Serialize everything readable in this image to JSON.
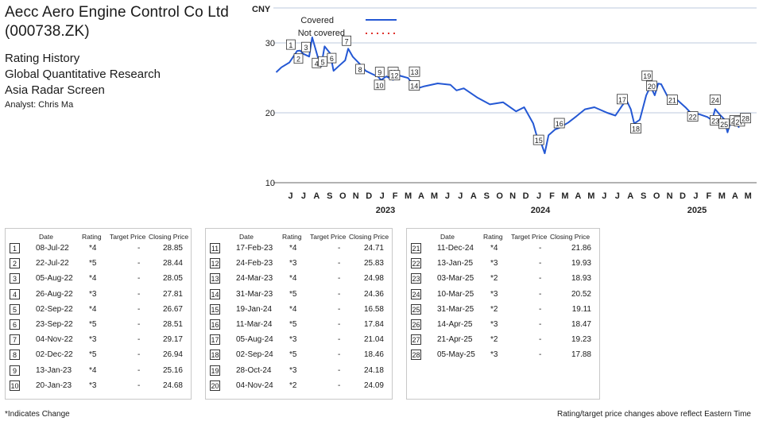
{
  "header": {
    "company_line1": "Aecc Aero Engine Control Co Ltd",
    "company_line2": "(000738.ZK)",
    "line1": "Rating History",
    "line2": "Global Quantitative Research",
    "line3": "Asia Radar Screen",
    "analyst": "Analyst: Chris Ma"
  },
  "legend": {
    "covered": "Covered",
    "not_covered": "Not covered",
    "covered_color": "#2458d4",
    "not_covered_color": "#e0322c"
  },
  "table_headers": {
    "date": "Date",
    "rating": "Rating",
    "target": "Target Price",
    "closing": "Closing Price"
  },
  "ratings": [
    {
      "n": "1",
      "date": "08-Jul-22",
      "rating": "*4",
      "target": "-",
      "close": "28.85"
    },
    {
      "n": "2",
      "date": "22-Jul-22",
      "rating": "*5",
      "target": "-",
      "close": "28.44"
    },
    {
      "n": "3",
      "date": "05-Aug-22",
      "rating": "*4",
      "target": "-",
      "close": "28.05"
    },
    {
      "n": "4",
      "date": "26-Aug-22",
      "rating": "*3",
      "target": "-",
      "close": "27.81"
    },
    {
      "n": "5",
      "date": "02-Sep-22",
      "rating": "*4",
      "target": "-",
      "close": "26.67"
    },
    {
      "n": "6",
      "date": "23-Sep-22",
      "rating": "*5",
      "target": "-",
      "close": "28.51"
    },
    {
      "n": "7",
      "date": "04-Nov-22",
      "rating": "*3",
      "target": "-",
      "close": "29.17"
    },
    {
      "n": "8",
      "date": "02-Dec-22",
      "rating": "*5",
      "target": "-",
      "close": "26.94"
    },
    {
      "n": "9",
      "date": "13-Jan-23",
      "rating": "*4",
      "target": "-",
      "close": "25.16"
    },
    {
      "n": "10",
      "date": "20-Jan-23",
      "rating": "*3",
      "target": "-",
      "close": "24.68"
    },
    {
      "n": "11",
      "date": "17-Feb-23",
      "rating": "*4",
      "target": "-",
      "close": "24.71"
    },
    {
      "n": "12",
      "date": "24-Feb-23",
      "rating": "*3",
      "target": "-",
      "close": "25.83"
    },
    {
      "n": "13",
      "date": "24-Mar-23",
      "rating": "*4",
      "target": "-",
      "close": "24.98"
    },
    {
      "n": "14",
      "date": "31-Mar-23",
      "rating": "*5",
      "target": "-",
      "close": "24.36"
    },
    {
      "n": "15",
      "date": "19-Jan-24",
      "rating": "*4",
      "target": "-",
      "close": "16.58"
    },
    {
      "n": "16",
      "date": "11-Mar-24",
      "rating": "*5",
      "target": "-",
      "close": "17.84"
    },
    {
      "n": "17",
      "date": "05-Aug-24",
      "rating": "*3",
      "target": "-",
      "close": "21.04"
    },
    {
      "n": "18",
      "date": "02-Sep-24",
      "rating": "*5",
      "target": "-",
      "close": "18.46"
    },
    {
      "n": "19",
      "date": "28-Oct-24",
      "rating": "*3",
      "target": "-",
      "close": "24.18"
    },
    {
      "n": "20",
      "date": "04-Nov-24",
      "rating": "*2",
      "target": "-",
      "close": "24.09"
    },
    {
      "n": "21",
      "date": "11-Dec-24",
      "rating": "*4",
      "target": "-",
      "close": "21.86"
    },
    {
      "n": "22",
      "date": "13-Jan-25",
      "rating": "*3",
      "target": "-",
      "close": "19.93"
    },
    {
      "n": "23",
      "date": "03-Mar-25",
      "rating": "*2",
      "target": "-",
      "close": "18.93"
    },
    {
      "n": "24",
      "date": "10-Mar-25",
      "rating": "*3",
      "target": "-",
      "close": "20.52"
    },
    {
      "n": "25",
      "date": "31-Mar-25",
      "rating": "*2",
      "target": "-",
      "close": "19.11"
    },
    {
      "n": "26",
      "date": "14-Apr-25",
      "rating": "*3",
      "target": "-",
      "close": "18.47"
    },
    {
      "n": "27",
      "date": "21-Apr-25",
      "rating": "*2",
      "target": "-",
      "close": "19.23"
    },
    {
      "n": "28",
      "date": "05-May-25",
      "rating": "*3",
      "target": "-",
      "close": "17.88"
    }
  ],
  "footer": {
    "left": "*Indicates Change",
    "right": "Rating/target price changes above reflect Eastern Time"
  },
  "chart_data": {
    "type": "line",
    "ylabel": "CNY",
    "ylim": [
      10,
      35
    ],
    "yticks": [
      10,
      20,
      30
    ],
    "grid": "horizontal",
    "legend_position": "top-left",
    "month_labels": [
      "J",
      "J",
      "A",
      "S",
      "O",
      "N",
      "D",
      "J",
      "F",
      "M",
      "A",
      "M",
      "J",
      "J",
      "A",
      "S",
      "O",
      "N",
      "D",
      "J",
      "F",
      "M",
      "A",
      "M",
      "J",
      "J",
      "A",
      "S",
      "O",
      "N",
      "D",
      "J",
      "F",
      "M",
      "A",
      "M"
    ],
    "year_labels": [
      "2023",
      "2024",
      "2025"
    ],
    "series": [
      {
        "name": "Covered",
        "x": [
          "2022-05-20",
          "2022-06-01",
          "2022-06-20",
          "2022-07-08",
          "2022-07-15",
          "2022-07-22",
          "2022-08-05",
          "2022-08-12",
          "2022-08-26",
          "2022-09-02",
          "2022-09-10",
          "2022-09-23",
          "2022-10-01",
          "2022-10-15",
          "2022-10-28",
          "2022-11-04",
          "2022-11-15",
          "2022-12-02",
          "2022-12-15",
          "2023-01-01",
          "2023-01-13",
          "2023-01-20",
          "2023-02-01",
          "2023-02-17",
          "2023-02-24",
          "2023-03-05",
          "2023-03-24",
          "2023-03-31",
          "2023-04-15",
          "2023-05-01",
          "2023-06-01",
          "2023-07-01",
          "2023-07-15",
          "2023-08-01",
          "2023-09-01",
          "2023-10-01",
          "2023-11-01",
          "2023-12-01",
          "2023-12-20",
          "2024-01-10",
          "2024-01-19",
          "2024-01-28",
          "2024-02-06",
          "2024-02-15",
          "2024-03-01",
          "2024-03-11",
          "2024-04-01",
          "2024-04-20",
          "2024-05-10",
          "2024-06-01",
          "2024-07-01",
          "2024-07-20",
          "2024-08-05",
          "2024-08-15",
          "2024-08-25",
          "2024-09-02",
          "2024-09-15",
          "2024-09-30",
          "2024-10-10",
          "2024-10-20",
          "2024-10-28",
          "2024-11-04",
          "2024-11-20",
          "2024-12-11",
          "2025-01-01",
          "2025-01-13",
          "2025-02-01",
          "2025-02-20",
          "2025-03-03",
          "2025-03-10",
          "2025-03-20",
          "2025-03-31",
          "2025-04-08",
          "2025-04-14",
          "2025-04-21",
          "2025-05-05"
        ],
        "y": [
          25.8,
          26.5,
          27.2,
          28.85,
          28.9,
          28.44,
          28.05,
          30.8,
          27.81,
          26.67,
          29.5,
          28.51,
          26.0,
          26.8,
          27.5,
          29.17,
          28.0,
          26.94,
          26.0,
          25.5,
          25.16,
          24.68,
          25.2,
          24.71,
          25.83,
          25.3,
          24.98,
          24.36,
          23.5,
          23.8,
          24.2,
          24.0,
          23.2,
          23.5,
          22.2,
          21.2,
          21.5,
          20.2,
          20.8,
          18.5,
          16.58,
          15.8,
          14.2,
          16.8,
          17.6,
          17.84,
          18.6,
          19.5,
          20.5,
          20.8,
          20.0,
          19.6,
          21.04,
          21.8,
          20.5,
          18.46,
          19.0,
          22.5,
          23.8,
          22.5,
          24.18,
          24.09,
          22.2,
          21.86,
          20.7,
          19.93,
          19.8,
          19.4,
          18.93,
          20.52,
          19.8,
          19.11,
          17.2,
          18.47,
          19.23,
          17.88
        ]
      }
    ],
    "annotations": [
      {
        "n": "1",
        "x": "2022-07-08"
      },
      {
        "n": "2",
        "x": "2022-07-22"
      },
      {
        "n": "3",
        "x": "2022-08-05"
      },
      {
        "n": "4",
        "x": "2022-08-26"
      },
      {
        "n": "5",
        "x": "2022-09-02"
      },
      {
        "n": "6",
        "x": "2022-09-23"
      },
      {
        "n": "7",
        "x": "2022-11-04"
      },
      {
        "n": "8",
        "x": "2022-12-02"
      },
      {
        "n": "9",
        "x": "2023-01-13"
      },
      {
        "n": "10",
        "x": "2023-01-20"
      },
      {
        "n": "11",
        "x": "2023-02-17"
      },
      {
        "n": "12",
        "x": "2023-02-24"
      },
      {
        "n": "13",
        "x": "2023-03-24"
      },
      {
        "n": "14",
        "x": "2023-03-31"
      },
      {
        "n": "15",
        "x": "2024-01-19"
      },
      {
        "n": "16",
        "x": "2024-03-11"
      },
      {
        "n": "17",
        "x": "2024-08-05"
      },
      {
        "n": "18",
        "x": "2024-09-02"
      },
      {
        "n": "19",
        "x": "2024-10-28"
      },
      {
        "n": "20",
        "x": "2024-11-04"
      },
      {
        "n": "21",
        "x": "2024-12-11"
      },
      {
        "n": "22",
        "x": "2025-01-13"
      },
      {
        "n": "23",
        "x": "2025-03-03"
      },
      {
        "n": "24",
        "x": "2025-03-10"
      },
      {
        "n": "25",
        "x": "2025-03-31"
      },
      {
        "n": "26",
        "x": "2025-04-14"
      },
      {
        "n": "27",
        "x": "2025-04-21"
      },
      {
        "n": "28",
        "x": "2025-05-05"
      }
    ]
  }
}
